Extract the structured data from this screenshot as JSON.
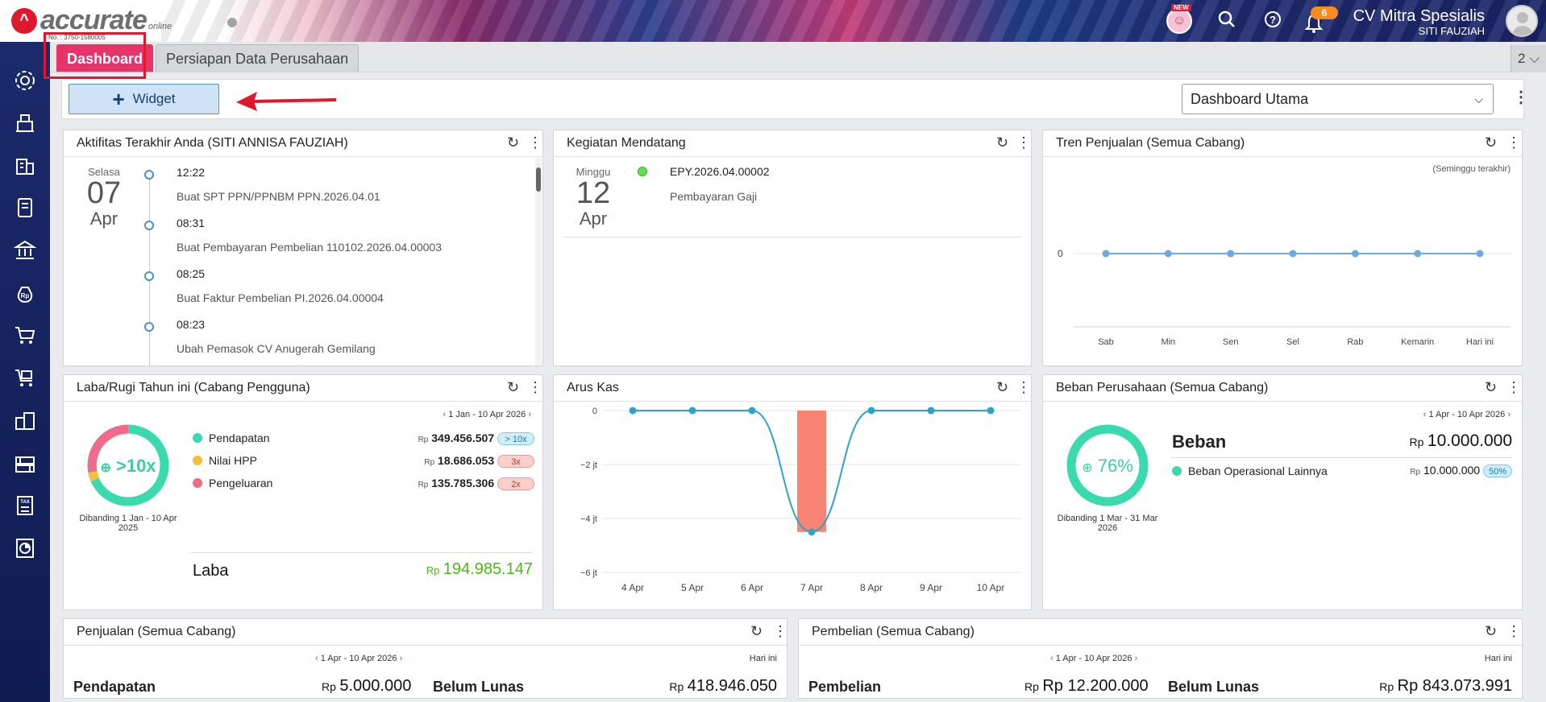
{
  "header": {
    "logo_text": "accurate",
    "logo_sub": "online",
    "serial": "No. : 3750-1580005",
    "new_label": "NEW",
    "notif_count": "6",
    "company_name": "CV Mitra Spesialis",
    "user_name": "SITI FAUZIAH"
  },
  "tabs": {
    "dashboard": "Dashboard",
    "persiapan": "Persiapan Data Perusahaan",
    "more": "2 ⌵"
  },
  "toolbar": {
    "widget_label": "Widget",
    "select_value": "Dashboard Utama"
  },
  "aktifitas": {
    "title": "Aktifitas Terakhir Anda (SITI ANNISA FAUZIAH)",
    "day": "Selasa",
    "date": "07",
    "month": "Apr",
    "items": [
      {
        "time": "12:22",
        "desc": "Buat SPT PPN/PPNBM PPN.2026.04.01"
      },
      {
        "time": "08:31",
        "desc": "Buat Pembayaran Pembelian 110102.2026.04.00003"
      },
      {
        "time": "08:25",
        "desc": "Buat Faktur Pembelian PI.2026.04.00004"
      },
      {
        "time": "08:23",
        "desc": "Ubah Pemasok CV Anugerah Gemilang"
      }
    ]
  },
  "kegiatan": {
    "title": "Kegiatan Mendatang",
    "day": "Minggu",
    "date": "12",
    "month": "Apr",
    "code": "EPY.2026.04.00002",
    "desc": "Pembayaran Gaji"
  },
  "tren": {
    "title": "Tren Penjualan (Semua Cabang)",
    "note": "(Seminggu terakhir)",
    "zero": "0"
  },
  "laba": {
    "title": "Laba/Rugi Tahun ini (Cabang Pengguna)",
    "period": "1 Jan - 10 Apr 2026",
    "ratio": ">10x",
    "compare": "Dibanding 1 Jan - 10 Apr 2025",
    "rp": "Rp",
    "rows": [
      {
        "label": "Pendapatan",
        "value": "349.456.507",
        "badge": "> 10x"
      },
      {
        "label": "Nilai HPP",
        "value": "18.686.053",
        "badge": "3x"
      },
      {
        "label": "Pengeluaran",
        "value": "135.785.306",
        "badge": "2x"
      }
    ],
    "laba_label": "Laba",
    "laba_value": "194.985.147"
  },
  "arus": {
    "title": "Arus Kas"
  },
  "beban": {
    "title": "Beban Perusahaan (Semua Cabang)",
    "period": "1 Apr - 10 Apr 2026",
    "percent": "76%",
    "compare": "Dibanding 1 Mar - 31 Mar 2026",
    "label": "Beban",
    "rp": "Rp",
    "value": "10.000.000",
    "item_label": "Beban Operasional Lainnya",
    "item_value": "10.000.000",
    "item_badge": "50%"
  },
  "penjualan": {
    "title": "Penjualan (Semua Cabang)",
    "period": "1 Apr - 10 Apr 2026",
    "hari_ini": "Hari ini",
    "pendapatan_label": "Pendapatan",
    "rp": "Rp",
    "pendapatan_value": "5.000.000",
    "belum_label": "Belum Lunas",
    "belum_value": "418.946.050"
  },
  "pembelian": {
    "title": "Pembelian (Semua Cabang)",
    "period": "1 Apr - 10 Apr 2026",
    "hari_ini": "Hari ini",
    "pembelian_label": "Pembelian",
    "rp": "Rp",
    "pembelian_value": "Rp 12.200.000",
    "belum_label": "Belum Lunas",
    "belum_value": "Rp 843.073.991"
  },
  "chart_data": [
    {
      "type": "line",
      "title": "Tren Penjualan (Semua Cabang)",
      "categories": [
        "Sab",
        "Min",
        "Sen",
        "Sel",
        "Rab",
        "Kemarin",
        "Hari ini"
      ],
      "values": [
        0,
        0,
        0,
        0,
        0,
        0,
        0
      ],
      "ylabel": "",
      "color": "#6fa8dc"
    },
    {
      "type": "line",
      "title": "Arus Kas",
      "categories": [
        "4 Apr",
        "5 Apr",
        "6 Apr",
        "7 Apr",
        "8 Apr",
        "9 Apr",
        "10 Apr"
      ],
      "values": [
        0,
        0,
        0,
        -4.5,
        0,
        0,
        0
      ],
      "bar_values": [
        0,
        0,
        0,
        -4.5,
        0,
        0,
        0
      ],
      "ylim": [
        -6,
        0
      ],
      "yticks": [
        {
          "v": 0,
          "label": "0"
        },
        {
          "v": -2,
          "label": "−2 jt"
        },
        {
          "v": -4,
          "label": "−4 jt"
        },
        {
          "v": -6,
          "label": "−6 jt"
        }
      ],
      "line_color": "#2ca3cc",
      "bar_color": "#f98473"
    }
  ],
  "colors": {
    "accent": "#e8336a",
    "green": "#4cb816",
    "teal_ring": "#3bd9ae",
    "pink_ring": "#f06b8a",
    "yellow_ring": "#f4c03c"
  }
}
